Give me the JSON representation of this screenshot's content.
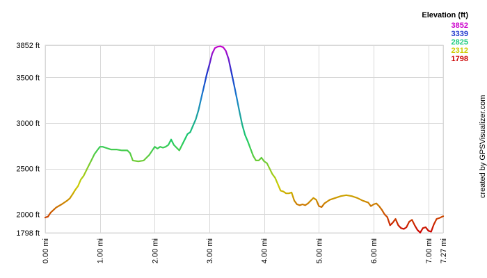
{
  "chart_data": {
    "type": "line",
    "title": "",
    "xlabel": "",
    "ylabel": "",
    "xlim": [
      0,
      7.27
    ],
    "ylim": [
      1798,
      3852
    ],
    "x_ticks": [
      0,
      1,
      2,
      3,
      4,
      5,
      6,
      7,
      7.27
    ],
    "x_tick_labels": [
      "0.00 mi",
      "1.00 mi",
      "2.00 mi",
      "3.00 mi",
      "4.00 mi",
      "5.00 mi",
      "6.00 mi",
      "7.00 mi",
      "7.27 mi"
    ],
    "y_ticks": [
      1798,
      2000,
      2500,
      3000,
      3500,
      3852
    ],
    "y_tick_labels": [
      "1798 ft",
      "2000 ft",
      "2500 ft",
      "3000 ft",
      "3500 ft",
      "3852 ft"
    ],
    "grid": true,
    "legend": {
      "position": "top-right",
      "title": "Elevation (ft)",
      "entries": [
        {
          "label": "3852",
          "color": "#cc00cc"
        },
        {
          "label": "3339",
          "color": "#1a33cc"
        },
        {
          "label": "2825",
          "color": "#1acc80"
        },
        {
          "label": "2312",
          "color": "#cccc00"
        },
        {
          "label": "1798",
          "color": "#cc0000"
        }
      ]
    },
    "credit": "created by GPSVisualizer.com",
    "series": [
      {
        "x": [
          0.0,
          0.05,
          0.1,
          0.2,
          0.3,
          0.4,
          0.45,
          0.5,
          0.55,
          0.6,
          0.65,
          0.7,
          0.75,
          0.8,
          0.85,
          0.9,
          0.95,
          1.0,
          1.05,
          1.1,
          1.2,
          1.3,
          1.4,
          1.5,
          1.55,
          1.6,
          1.7,
          1.8,
          1.85,
          1.9,
          2.0,
          2.05,
          2.1,
          2.15,
          2.2,
          2.25,
          2.3,
          2.35,
          2.4,
          2.45,
          2.5,
          2.55,
          2.6,
          2.65,
          2.7,
          2.75,
          2.8,
          2.85,
          2.9,
          2.95,
          3.0,
          3.05,
          3.1,
          3.15,
          3.2,
          3.25,
          3.3,
          3.35,
          3.4,
          3.45,
          3.5,
          3.55,
          3.6,
          3.65,
          3.7,
          3.75,
          3.8,
          3.85,
          3.9,
          3.95,
          4.0,
          4.05,
          4.1,
          4.15,
          4.2,
          4.25,
          4.3,
          4.35,
          4.4,
          4.45,
          4.5,
          4.55,
          4.6,
          4.65,
          4.7,
          4.75,
          4.8,
          4.85,
          4.9,
          4.95,
          5.0,
          5.05,
          5.1,
          5.15,
          5.2,
          5.3,
          5.4,
          5.5,
          5.6,
          5.7,
          5.8,
          5.9,
          5.95,
          6.0,
          6.05,
          6.1,
          6.15,
          6.2,
          6.25,
          6.3,
          6.35,
          6.4,
          6.45,
          6.5,
          6.55,
          6.6,
          6.65,
          6.7,
          6.75,
          6.8,
          6.85,
          6.9,
          6.95,
          7.0,
          7.05,
          7.1,
          7.15,
          7.2,
          7.27
        ],
        "y": [
          1965,
          1975,
          2020,
          2075,
          2110,
          2150,
          2175,
          2220,
          2270,
          2310,
          2380,
          2420,
          2480,
          2540,
          2600,
          2660,
          2700,
          2740,
          2740,
          2730,
          2710,
          2710,
          2700,
          2700,
          2670,
          2590,
          2580,
          2590,
          2620,
          2650,
          2740,
          2720,
          2740,
          2730,
          2740,
          2760,
          2820,
          2760,
          2730,
          2700,
          2760,
          2820,
          2880,
          2900,
          2970,
          3040,
          3140,
          3270,
          3400,
          3530,
          3640,
          3760,
          3820,
          3835,
          3840,
          3830,
          3790,
          3700,
          3560,
          3420,
          3270,
          3120,
          2980,
          2870,
          2800,
          2720,
          2640,
          2590,
          2590,
          2620,
          2580,
          2560,
          2500,
          2440,
          2400,
          2330,
          2260,
          2250,
          2230,
          2230,
          2240,
          2150,
          2110,
          2100,
          2110,
          2100,
          2120,
          2150,
          2180,
          2160,
          2090,
          2080,
          2120,
          2140,
          2160,
          2180,
          2200,
          2210,
          2200,
          2180,
          2150,
          2130,
          2090,
          2110,
          2120,
          2090,
          2050,
          2000,
          1970,
          1880,
          1910,
          1950,
          1880,
          1850,
          1840,
          1860,
          1920,
          1940,
          1880,
          1830,
          1800,
          1850,
          1860,
          1820,
          1810,
          1890,
          1950,
          1960,
          1980
        ]
      }
    ]
  }
}
